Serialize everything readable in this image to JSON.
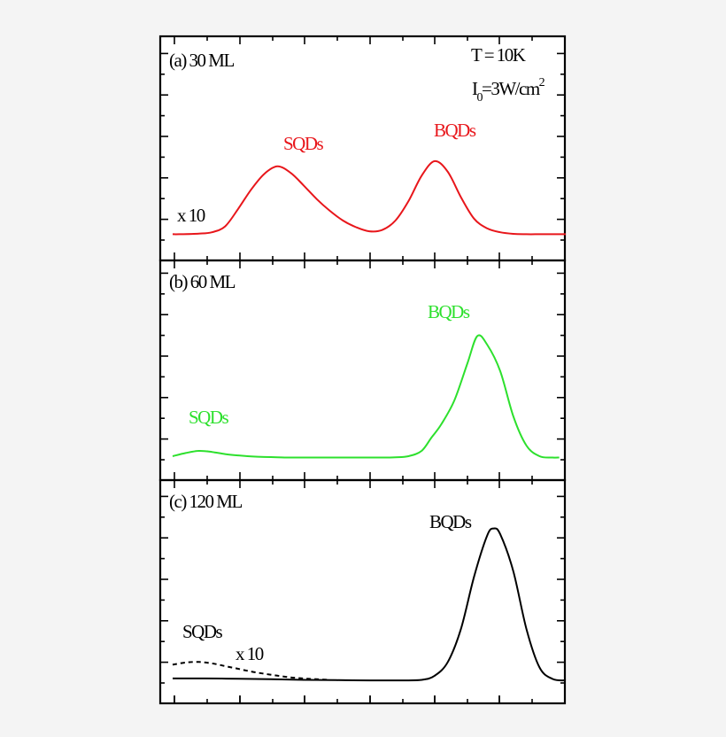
{
  "chart_data": [
    {
      "type": "line",
      "panel_label": "(a) 30 ML",
      "annotations": {
        "temperature": "T = 10K",
        "intensity_main": "I",
        "intensity_sub": "0",
        "intensity_rest": "=3W/cm",
        "intensity_sup": "2"
      },
      "peak_labels": [
        "SQDs",
        "BQDs"
      ],
      "scale_note": "x 10",
      "color": "#e8161b",
      "series": [
        {
          "x": [
            0,
            0.2,
            0.8,
            1.2,
            1.6,
            2.0,
            2.4,
            2.8,
            3.2,
            3.6,
            4.0,
            4.4,
            4.8,
            5.2,
            5.6,
            6.0,
            6.4,
            6.8,
            7.2,
            7.6,
            8.0,
            8.4,
            8.8,
            9.2,
            9.6,
            10.0,
            10.4,
            10.8,
            11.2,
            11.6,
            12.0
          ],
          "y": [
            0.3,
            0.3,
            0.33,
            0.4,
            0.7,
            1.6,
            2.6,
            3.4,
            3.78,
            3.45,
            2.8,
            2.1,
            1.5,
            1.0,
            0.66,
            0.45,
            0.52,
            1.0,
            2.0,
            3.3,
            4.05,
            3.5,
            2.2,
            1.1,
            0.6,
            0.4,
            0.32,
            0.3,
            0.3,
            0.3,
            0.3
          ]
        }
      ]
    },
    {
      "type": "line",
      "panel_label": "(b) 60 ML",
      "peak_labels": [
        "SQDs",
        "BQDs"
      ],
      "color": "#2de02d",
      "series": [
        {
          "x": [
            0,
            0.4,
            0.8,
            1.2,
            1.6,
            2.0,
            2.4,
            2.8,
            3.2,
            3.6,
            4.0,
            4.4,
            4.8,
            5.2,
            5.6,
            6.0,
            6.4,
            6.8,
            7.2,
            7.6,
            7.9,
            8.2,
            8.6,
            9.0,
            9.3,
            9.6,
            10.0,
            10.4,
            10.8,
            11.2,
            11.6,
            11.8
          ],
          "y": [
            0.1,
            0.22,
            0.3,
            0.26,
            0.18,
            0.13,
            0.09,
            0.07,
            0.06,
            0.05,
            0.05,
            0.05,
            0.05,
            0.05,
            0.05,
            0.05,
            0.05,
            0.06,
            0.1,
            0.3,
            0.8,
            1.3,
            2.2,
            3.6,
            4.62,
            4.3,
            3.3,
            1.6,
            0.5,
            0.1,
            0.05,
            0.05
          ]
        }
      ]
    },
    {
      "type": "line",
      "panel_label": "(c) 120 ML",
      "peak_labels": [
        "SQDs",
        "BQDs"
      ],
      "scale_note": "x 10",
      "color": "#000000",
      "series": [
        {
          "style": "solid",
          "x": [
            0,
            1.0,
            2.0,
            3.0,
            4.0,
            5.0,
            6.0,
            7.0,
            7.6,
            8.0,
            8.4,
            8.8,
            9.2,
            9.6,
            9.8,
            10.0,
            10.4,
            10.8,
            11.2,
            11.6,
            12.0
          ],
          "y": [
            0.1,
            0.1,
            0.09,
            0.07,
            0.05,
            0.04,
            0.03,
            0.03,
            0.05,
            0.2,
            0.7,
            1.9,
            3.8,
            5.3,
            5.56,
            5.35,
            4.0,
            1.9,
            0.5,
            0.08,
            0.03
          ]
        },
        {
          "style": "dashed",
          "x": [
            0,
            0.4,
            0.8,
            1.2,
            1.6,
            2.0,
            2.4,
            2.8,
            3.2,
            3.6,
            4.0,
            4.4,
            4.8
          ],
          "y": [
            0.6,
            0.68,
            0.7,
            0.65,
            0.55,
            0.45,
            0.35,
            0.27,
            0.2,
            0.14,
            0.1,
            0.07,
            0.05
          ]
        }
      ]
    }
  ]
}
